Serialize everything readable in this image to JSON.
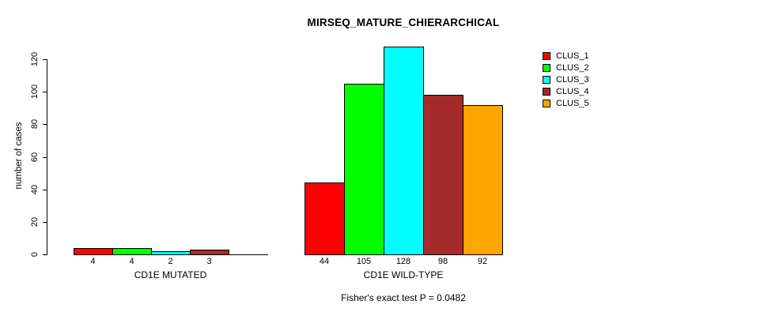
{
  "chart_data": {
    "type": "bar",
    "title": "MIRSEQ_MATURE_CHIERARCHICAL",
    "ylabel": "number of cases",
    "annotation": "Fisher's exact test P = 0.0482",
    "ylim": [
      0,
      120
    ],
    "yticks": [
      0,
      20,
      40,
      60,
      80,
      100,
      120
    ],
    "grid": false,
    "legend_position": "right",
    "series": [
      {
        "name": "CLUS_1",
        "color": "#FF0000"
      },
      {
        "name": "CLUS_2",
        "color": "#00FF00"
      },
      {
        "name": "CLUS_3",
        "color": "#00FFFF"
      },
      {
        "name": "CLUS_4",
        "color": "#A52A2A"
      },
      {
        "name": "CLUS_5",
        "color": "#FFA500"
      }
    ],
    "groups": [
      {
        "label": "CD1E MUTATED",
        "values": [
          4,
          4,
          2,
          3,
          0
        ],
        "bar_labels": [
          "4",
          "4",
          "2",
          "3",
          ""
        ]
      },
      {
        "label": "CD1E WILD-TYPE",
        "values": [
          44,
          105,
          128,
          98,
          92
        ],
        "bar_labels": [
          "44",
          "105",
          "128",
          "98",
          "92"
        ]
      }
    ]
  }
}
